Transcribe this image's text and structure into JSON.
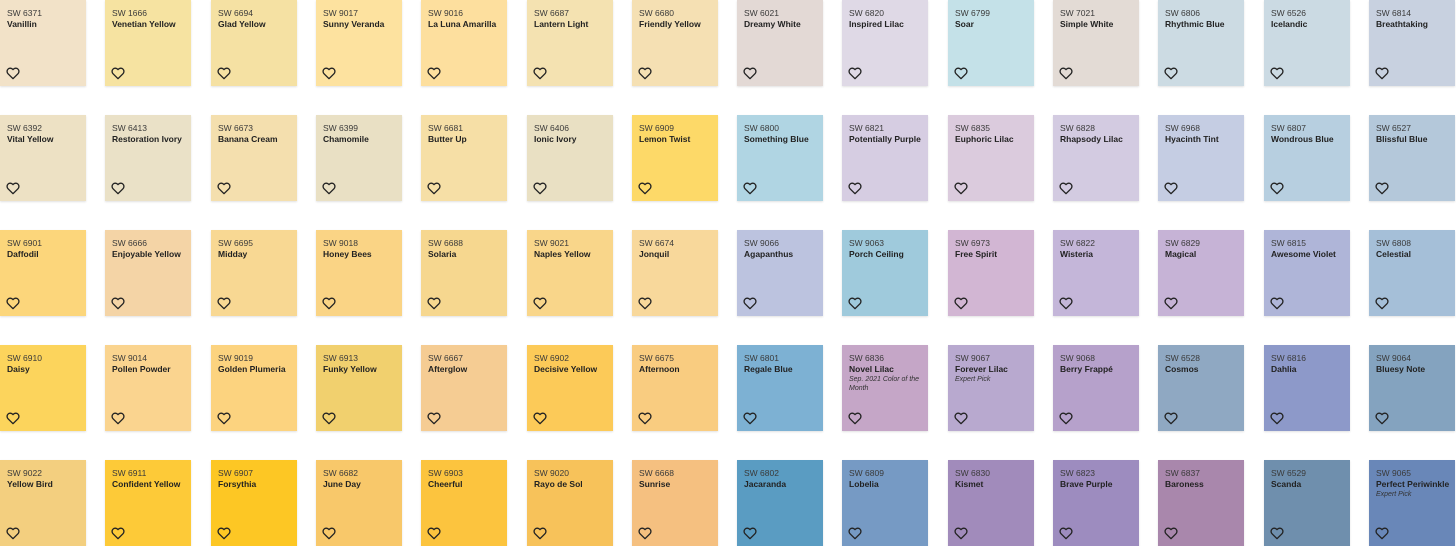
{
  "swatches": [
    [
      {
        "code": "SW 6371",
        "name": "Vanillin",
        "color": "#f2e2c8"
      },
      {
        "code": "SW 1666",
        "name": "Venetian Yellow",
        "color": "#f6e3a1"
      },
      {
        "code": "SW 6694",
        "name": "Glad Yellow",
        "color": "#f5e1a3"
      },
      {
        "code": "SW 9017",
        "name": "Sunny Veranda",
        "color": "#fde29f"
      },
      {
        "code": "SW 9016",
        "name": "La Luna Amarilla",
        "color": "#fddf9e"
      },
      {
        "code": "SW 6687",
        "name": "Lantern Light",
        "color": "#f4e2b1"
      },
      {
        "code": "SW 6680",
        "name": "Friendly Yellow",
        "color": "#f5e0b3"
      },
      {
        "code": "SW 6021",
        "name": "Dreamy White",
        "color": "#e3d9d5"
      },
      {
        "code": "SW 6820",
        "name": "Inspired Lilac",
        "color": "#dfd9e6"
      },
      {
        "code": "SW 6799",
        "name": "Soar",
        "color": "#c4e1e8"
      },
      {
        "code": "SW 7021",
        "name": "Simple White",
        "color": "#e3dbd5"
      },
      {
        "code": "SW 6806",
        "name": "Rhythmic Blue",
        "color": "#ccdbe3"
      },
      {
        "code": "SW 6526",
        "name": "Icelandic",
        "color": "#cbdae3"
      },
      {
        "code": "SW 6814",
        "name": "Breathtaking",
        "color": "#c8d1e0"
      }
    ],
    [
      {
        "code": "SW 6392",
        "name": "Vital Yellow",
        "color": "#ede1c4"
      },
      {
        "code": "SW 6413",
        "name": "Restoration Ivory",
        "color": "#eae1c7"
      },
      {
        "code": "SW 6673",
        "name": "Banana Cream",
        "color": "#f4dfae"
      },
      {
        "code": "SW 6399",
        "name": "Chamomile",
        "color": "#e9e0c4"
      },
      {
        "code": "SW 6681",
        "name": "Butter Up",
        "color": "#f6dfa6"
      },
      {
        "code": "SW 6406",
        "name": "Ionic Ivory",
        "color": "#e9e0c3"
      },
      {
        "code": "SW 6909",
        "name": "Lemon Twist",
        "color": "#fdd968"
      },
      {
        "code": "SW 6800",
        "name": "Something Blue",
        "color": "#b0d5e3"
      },
      {
        "code": "SW 6821",
        "name": "Potentially Purple",
        "color": "#d6cde2"
      },
      {
        "code": "SW 6835",
        "name": "Euphoric Lilac",
        "color": "#dbcbdd"
      },
      {
        "code": "SW 6828",
        "name": "Rhapsody Lilac",
        "color": "#d3cbe1"
      },
      {
        "code": "SW 6968",
        "name": "Hyacinth Tint",
        "color": "#c5cde3"
      },
      {
        "code": "SW 6807",
        "name": "Wondrous Blue",
        "color": "#b7cfe0"
      },
      {
        "code": "SW 6527",
        "name": "Blissful Blue",
        "color": "#b4c8da"
      }
    ],
    [
      {
        "code": "SW 6901",
        "name": "Daffodil",
        "color": "#fcd67b"
      },
      {
        "code": "SW 6666",
        "name": "Enjoyable Yellow",
        "color": "#f4d4a6"
      },
      {
        "code": "SW 6695",
        "name": "Midday",
        "color": "#f8d893"
      },
      {
        "code": "SW 9018",
        "name": "Honey Bees",
        "color": "#fad485"
      },
      {
        "code": "SW 6688",
        "name": "Solaria",
        "color": "#f6d78f"
      },
      {
        "code": "SW 9021",
        "name": "Naples Yellow",
        "color": "#f9d68a"
      },
      {
        "code": "SW 6674",
        "name": "Jonquil",
        "color": "#f8d89b"
      },
      {
        "code": "SW 9066",
        "name": "Agapanthus",
        "color": "#bcc3df"
      },
      {
        "code": "SW 9063",
        "name": "Porch Ceiling",
        "color": "#9fcadc"
      },
      {
        "code": "SW 6973",
        "name": "Free Spirit",
        "color": "#d2b6d3"
      },
      {
        "code": "SW 6822",
        "name": "Wisteria",
        "color": "#c4b6d9"
      },
      {
        "code": "SW 6829",
        "name": "Magical",
        "color": "#c6b3d6"
      },
      {
        "code": "SW 6815",
        "name": "Awesome Violet",
        "color": "#afb5d8"
      },
      {
        "code": "SW 6808",
        "name": "Celestial",
        "color": "#a5bfd8"
      }
    ],
    [
      {
        "code": "SW 6910",
        "name": "Daisy",
        "color": "#fcd45c"
      },
      {
        "code": "SW 9014",
        "name": "Pollen Powder",
        "color": "#fad48f"
      },
      {
        "code": "SW 9019",
        "name": "Golden Plumeria",
        "color": "#fcd37f"
      },
      {
        "code": "SW 6913",
        "name": "Funky Yellow",
        "color": "#f1d06e"
      },
      {
        "code": "SW 6667",
        "name": "Afterglow",
        "color": "#f5cc93"
      },
      {
        "code": "SW 6902",
        "name": "Decisive Yellow",
        "color": "#fcca58"
      },
      {
        "code": "SW 6675",
        "name": "Afternoon",
        "color": "#f9cc80"
      },
      {
        "code": "SW 6801",
        "name": "Regale Blue",
        "color": "#7db1d3"
      },
      {
        "code": "SW 6836",
        "name": "Novel Lilac",
        "note": "Sep. 2021 Color of the Month",
        "color": "#c5a6c7"
      },
      {
        "code": "SW 9067",
        "name": "Forever Lilac",
        "note": "Expert Pick",
        "color": "#b8a9cf"
      },
      {
        "code": "SW 9068",
        "name": "Berry Frappé",
        "color": "#b6a1cb"
      },
      {
        "code": "SW 6528",
        "name": "Cosmos",
        "color": "#8fa8c2"
      },
      {
        "code": "SW 6816",
        "name": "Dahlia",
        "color": "#8d99c9"
      },
      {
        "code": "SW 9064",
        "name": "Bluesy Note",
        "color": "#84a3bf"
      }
    ],
    [
      {
        "code": "SW 9022",
        "name": "Yellow Bird",
        "color": "#f3cf7f"
      },
      {
        "code": "SW 6911",
        "name": "Confident Yellow",
        "color": "#fdca38"
      },
      {
        "code": "SW 6907",
        "name": "Forsythia",
        "color": "#fdc724"
      },
      {
        "code": "SW 6682",
        "name": "June Day",
        "color": "#f8c86a"
      },
      {
        "code": "SW 6903",
        "name": "Cheerful",
        "color": "#fcc43e"
      },
      {
        "code": "SW 9020",
        "name": "Rayo de Sol",
        "color": "#f7c25a"
      },
      {
        "code": "SW 6668",
        "name": "Sunrise",
        "color": "#f5c080"
      },
      {
        "code": "SW 6802",
        "name": "Jacaranda",
        "color": "#5a9cc2"
      },
      {
        "code": "SW 6809",
        "name": "Lobelia",
        "color": "#769ac4"
      },
      {
        "code": "SW 6830",
        "name": "Kismet",
        "color": "#a18bbb"
      },
      {
        "code": "SW 6823",
        "name": "Brave Purple",
        "color": "#9d8cbf"
      },
      {
        "code": "SW 6837",
        "name": "Baroness",
        "color": "#a987ac"
      },
      {
        "code": "SW 6529",
        "name": "Scanda",
        "color": "#6f8fad"
      },
      {
        "code": "SW 9065",
        "name": "Perfect Periwinkle",
        "note": "Expert Pick",
        "color": "#6987b8"
      }
    ]
  ]
}
